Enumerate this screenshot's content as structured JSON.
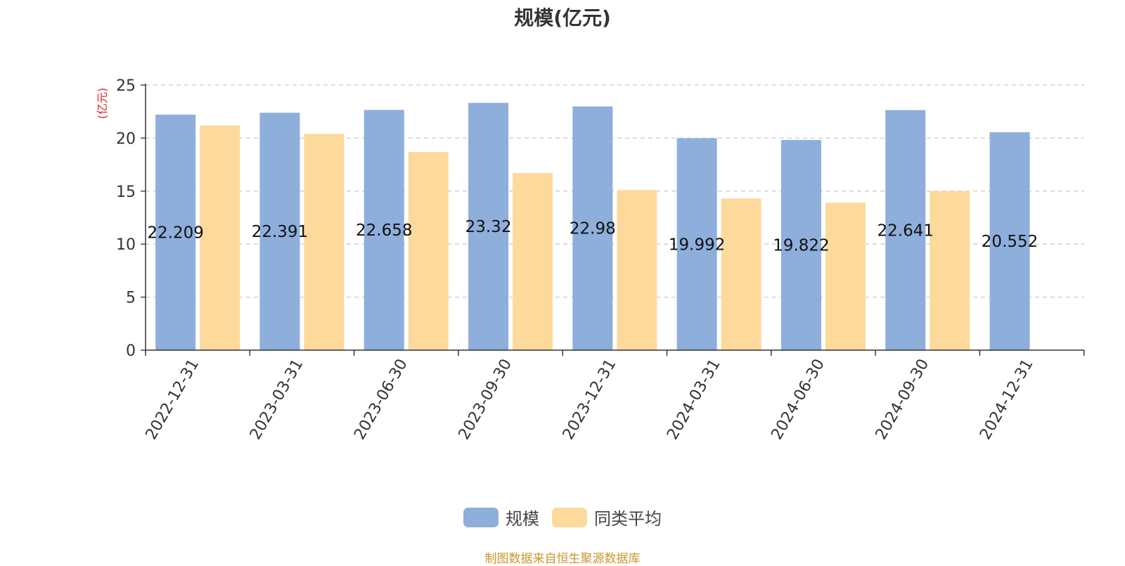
{
  "chart_data": {
    "type": "bar",
    "title": "规模(亿元)",
    "ylabel": "(亿元)",
    "xlabel": "",
    "categories": [
      "2022-12-31",
      "2023-03-31",
      "2023-06-30",
      "2023-09-30",
      "2023-12-31",
      "2024-03-31",
      "2024-06-30",
      "2024-09-30",
      "2024-12-31"
    ],
    "series": [
      {
        "name": "规模",
        "values": [
          22.209,
          22.391,
          22.658,
          23.32,
          22.98,
          19.992,
          19.822,
          22.641,
          20.552
        ],
        "data_labels": [
          "22.209",
          "22.391",
          "22.658",
          "23.32",
          "22.98",
          "19.992",
          "19.822",
          "22.641",
          "20.552"
        ]
      },
      {
        "name": "同类平均",
        "values": [
          21.2,
          20.4,
          18.7,
          16.7,
          15.1,
          14.3,
          13.9,
          15.0,
          null
        ]
      }
    ],
    "ylim": [
      0,
      25
    ],
    "yticks": [
      "0",
      "5",
      "10",
      "15",
      "20",
      "25"
    ],
    "grid": true,
    "legend_position": "bottom",
    "colors": {
      "规模": "#8eaedb",
      "同类平均": "#fdd99b",
      "ylabel": "#e8201f",
      "grid": "#cccccc",
      "axis": "#333333"
    }
  },
  "source_text": "制图数据来自恒生聚源数据库"
}
